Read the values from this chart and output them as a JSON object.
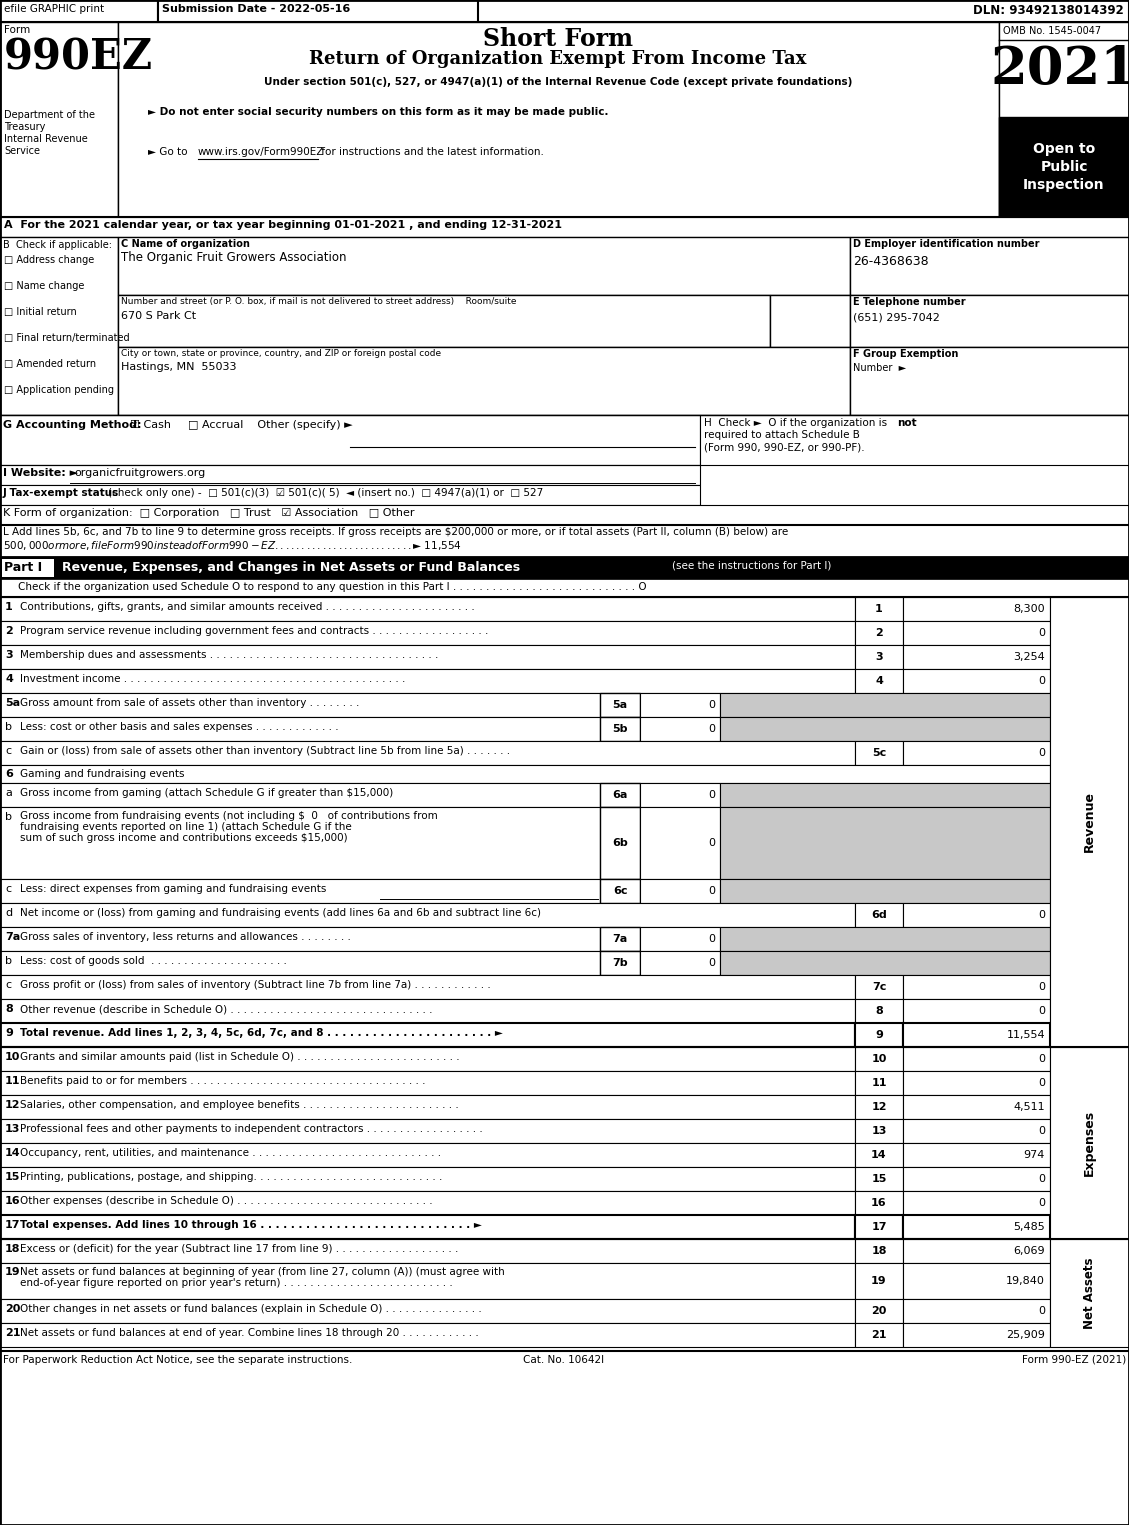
{
  "title_short_form": "Short Form",
  "title_main": "Return of Organization Exempt From Income Tax",
  "subtitle": "Under section 501(c), 527, or 4947(a)(1) of the Internal Revenue Code (except private foundations)",
  "year": "2021",
  "omb": "OMB No. 1545-0047",
  "open_to": "Open to\nPublic\nInspection",
  "efile_text": "efile GRAPHIC print",
  "submission_date": "Submission Date - 2022-05-16",
  "dln": "DLN: 93492138014392",
  "dept1": "Department of the",
  "dept2": "Treasury",
  "dept3": "Internal Revenue",
  "dept4": "Service",
  "bullet1": "► Do not enter social security numbers on this form as it may be made public.",
  "bullet2": "► Go to ",
  "bullet2_link": "www.irs.gov/Form990EZ",
  "bullet2_end": " for instructions and the latest information.",
  "line_A": "A  For the 2021 calendar year, or tax year beginning 01-01-2021 , and ending 12-31-2021",
  "checkboxes_B": [
    "Address change",
    "Name change",
    "Initial return",
    "Final return/terminated",
    "Amended return",
    "Application pending"
  ],
  "org_name": "The Organic Fruit Growers Association",
  "ein": "26-4368638",
  "address_label": "Number and street (or P. O. box, if mail is not delivered to street address)    Room/suite",
  "address": "670 S Park Ct",
  "phone": "(651) 295-7042",
  "city": "Hastings, MN  55033",
  "website": "organicfruitgrowers.org",
  "revenue_rows": [
    {
      "num": "1",
      "label": "Contributions, gifts, grants, and similar amounts received . . . . . . . . . . . . . . . . . . . . . . .",
      "line": "1",
      "value": "8,300"
    },
    {
      "num": "2",
      "label": "Program service revenue including government fees and contracts . . . . . . . . . . . . . . . . . .",
      "line": "2",
      "value": "0"
    },
    {
      "num": "3",
      "label": "Membership dues and assessments . . . . . . . . . . . . . . . . . . . . . . . . . . . . . . . . . . .",
      "line": "3",
      "value": "3,254"
    },
    {
      "num": "4",
      "label": "Investment income . . . . . . . . . . . . . . . . . . . . . . . . . . . . . . . . . . . . . . . . . . .",
      "line": "4",
      "value": "0"
    }
  ],
  "row_5a_label": "Gross amount from sale of assets other than inventory . . . . . . . .",
  "row_5b_label": "Less: cost or other basis and sales expenses . . . . . . . . . . . . .",
  "row_5c_label": "Gain or (loss) from sale of assets other than inventory (Subtract line 5b from line 5a) . . . . . . .",
  "row_6a_label": "Gross income from gaming (attach Schedule G if greater than $15,000)",
  "row_6b_line1": "Gross income from fundraising events (not including $  0   of contributions from",
  "row_6b_line2": "fundraising events reported on line 1) (attach Schedule G if the",
  "row_6b_line3": "sum of such gross income and contributions exceeds $15,000)",
  "row_6c_label": "Less: direct expenses from gaming and fundraising events",
  "row_6d_label": "Net income or (loss) from gaming and fundraising events (add lines 6a and 6b and subtract line 6c)",
  "row_7a_label": "Gross sales of inventory, less returns and allowances . . . . . . . .",
  "row_7b_label": "Less: cost of goods sold  . . . . . . . . . . . . . . . . . . . . .",
  "row_7c_label": "Gross profit or (loss) from sales of inventory (Subtract line 7b from line 7a) . . . . . . . . . . . .",
  "row_8_label": "Other revenue (describe in Schedule O) . . . . . . . . . . . . . . . . . . . . . . . . . . . . . . .",
  "row_9_label": "Total revenue. Add lines 1, 2, 3, 4, 5c, 6d, 7c, and 8 . . . . . . . . . . . . . . . . . . . . . . ►",
  "expenses_rows": [
    {
      "num": "10",
      "label": "Grants and similar amounts paid (list in Schedule O) . . . . . . . . . . . . . . . . . . . . . . . . .",
      "line": "10",
      "value": "0"
    },
    {
      "num": "11",
      "label": "Benefits paid to or for members . . . . . . . . . . . . . . . . . . . . . . . . . . . . . . . . . . . .",
      "line": "11",
      "value": "0"
    },
    {
      "num": "12",
      "label": "Salaries, other compensation, and employee benefits . . . . . . . . . . . . . . . . . . . . . . . .",
      "line": "12",
      "value": "4,511"
    },
    {
      "num": "13",
      "label": "Professional fees and other payments to independent contractors . . . . . . . . . . . . . . . . . .",
      "line": "13",
      "value": "0"
    },
    {
      "num": "14",
      "label": "Occupancy, rent, utilities, and maintenance . . . . . . . . . . . . . . . . . . . . . . . . . . . . .",
      "line": "14",
      "value": "974"
    },
    {
      "num": "15",
      "label": "Printing, publications, postage, and shipping. . . . . . . . . . . . . . . . . . . . . . . . . . . . .",
      "line": "15",
      "value": "0"
    },
    {
      "num": "16",
      "label": "Other expenses (describe in Schedule O) . . . . . . . . . . . . . . . . . . . . . . . . . . . . . .",
      "line": "16",
      "value": "0"
    }
  ],
  "row_17_label": "Total expenses. Add lines 10 through 16 . . . . . . . . . . . . . . . . . . . . . . . . . . . . ►",
  "row_18_label": "Excess or (deficit) for the year (Subtract line 17 from line 9) . . . . . . . . . . . . . . . . . . .",
  "row_19_label1": "Net assets or fund balances at beginning of year (from line 27, column (A)) (must agree with",
  "row_19_label2": "end-of-year figure reported on prior year's return) . . . . . . . . . . . . . . . . . . . . . . . . . .",
  "row_20_label": "Other changes in net assets or fund balances (explain in Schedule O) . . . . . . . . . . . . . . .",
  "row_21_label": "Net assets or fund balances at end of year. Combine lines 18 through 20 . . . . . . . . . . . .",
  "footer_left": "For Paperwork Reduction Act Notice, see the separate instructions.",
  "footer_cat": "Cat. No. 10642I",
  "footer_right": "Form 990-EZ (2021)",
  "gray": "#c8c8c8",
  "black": "#000000",
  "white": "#ffffff"
}
